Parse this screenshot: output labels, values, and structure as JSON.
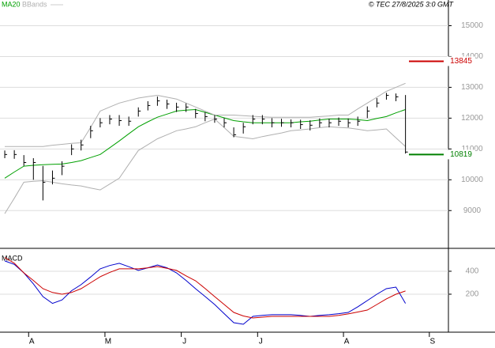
{
  "chart_data": [
    {
      "type": "ohlc",
      "legend": [
        {
          "name": "MA20",
          "color": "#00a000"
        },
        {
          "name": "BBands",
          "color": "#b0b0b0"
        }
      ],
      "credit": "© TEC 27/8/2025 3:0 GMT",
      "categories": [
        null,
        null,
        null,
        "A",
        null,
        null,
        null,
        null,
        null,
        null,
        null,
        "M",
        null,
        null,
        null,
        null,
        null,
        null,
        null,
        "J",
        null,
        null,
        null,
        null,
        null,
        null,
        null,
        "J",
        null,
        null,
        null,
        null,
        null,
        null,
        null,
        null,
        "A",
        null,
        null,
        null,
        null,
        null,
        null,
        null,
        null,
        "S",
        null
      ],
      "high": [
        10950,
        10960,
        10800,
        10700,
        10450,
        10300,
        10600,
        11150,
        11300,
        11750,
        12000,
        12100,
        12100,
        12050,
        12350,
        12550,
        12700,
        12600,
        12500,
        12480,
        12300,
        12200,
        12100,
        12000,
        11700,
        11850,
        12100,
        12100,
        12000,
        11980,
        11960,
        11950,
        11930,
        11990,
        11980,
        12020,
        11990,
        12050,
        12380,
        12650,
        12820,
        12800,
        12750,
        null,
        null,
        null,
        null
      ],
      "low": [
        10700,
        10680,
        10450,
        10000,
        9330,
        9850,
        10150,
        10800,
        10950,
        11350,
        11700,
        11800,
        11750,
        11750,
        12050,
        12250,
        12400,
        12300,
        12200,
        12200,
        12000,
        11900,
        11850,
        11700,
        11380,
        11500,
        11800,
        11800,
        11700,
        11720,
        11700,
        11650,
        11600,
        11700,
        11700,
        11750,
        11700,
        11750,
        12000,
        12350,
        12600,
        12550,
        10850,
        null,
        null,
        null,
        null
      ],
      "close": [
        10820,
        10820,
        10560,
        10560,
        9920,
        10050,
        10440,
        11000,
        11130,
        11590,
        11850,
        11970,
        11920,
        11900,
        12230,
        12410,
        12560,
        12460,
        12360,
        12360,
        12150,
        12050,
        11970,
        11850,
        11460,
        11720,
        11970,
        11970,
        11850,
        11850,
        11850,
        11790,
        11770,
        11850,
        11850,
        11900,
        11850,
        11900,
        12230,
        12490,
        12740,
        12690,
        10900,
        null,
        null,
        null,
        null
      ],
      "bar_color": "#000000",
      "series": [
        {
          "name": "MA20",
          "color": "#00a000",
          "values": [
            10050,
            10250,
            10440,
            10470,
            10490,
            10500,
            10510,
            10560,
            10620,
            10720,
            10820,
            11040,
            11260,
            11490,
            11720,
            11880,
            12030,
            12130,
            12230,
            12260,
            12280,
            12190,
            12100,
            12010,
            11920,
            11880,
            11850,
            11850,
            11850,
            11850,
            11850,
            11880,
            11900,
            11940,
            11970,
            11970,
            11970,
            11950,
            11920,
            11990,
            12050,
            12170,
            12280,
            null,
            null,
            null,
            null
          ]
        },
        {
          "name": "BBands",
          "color": "#b0b0b0",
          "values": [
            11080,
            11080,
            11080,
            11080,
            11080,
            11120,
            11150,
            11180,
            11200,
            11700,
            12230,
            12360,
            12490,
            12570,
            12650,
            12700,
            12740,
            12680,
            12620,
            12490,
            12360,
            12230,
            12100,
            12100,
            12100,
            12080,
            12060,
            12040,
            12030,
            12030,
            12030,
            12030,
            12030,
            12050,
            12070,
            12100,
            12100,
            12300,
            12490,
            12680,
            12870,
            13000,
            13130,
            null,
            null,
            null,
            null
          ],
          "lower": [
            8900,
            9400,
            9920,
            9950,
            9970,
            9920,
            9870,
            9830,
            9800,
            9730,
            9670,
            9860,
            10050,
            10500,
            10950,
            11140,
            11330,
            11460,
            11590,
            11650,
            11720,
            11850,
            11970,
            11690,
            11410,
            11370,
            11330,
            11400,
            11460,
            11520,
            11590,
            11620,
            11650,
            11690,
            11720,
            11700,
            11680,
            11640,
            11590,
            11620,
            11650,
            11360,
            11080,
            null,
            null,
            null,
            null
          ]
        }
      ],
      "levels": [
        {
          "value": 13845,
          "label": "13845",
          "color": "#cc0000"
        },
        {
          "value": 10819,
          "label": "10819",
          "color": "#008000"
        }
      ],
      "ylim": [
        7800,
        15500
      ],
      "yticks": [
        9000,
        10000,
        11000,
        12000,
        13000,
        14000,
        15000
      ],
      "grid": true
    },
    {
      "type": "line",
      "title": "MACD",
      "series": [
        {
          "color": "#0000cc",
          "values": [
            490,
            460,
            386,
            290,
            179,
            120,
            150,
            230,
            283,
            350,
            421,
            450,
            469,
            440,
            407,
            430,
            455,
            430,
            386,
            320,
            248,
            180,
            110,
            30,
            -48,
            -62,
            7,
            15,
            21,
            21,
            21,
            15,
            7,
            15,
            21,
            30,
            41,
            90,
            145,
            200,
            248,
            262,
            120,
            null,
            null,
            null,
            null
          ]
        },
        {
          "color": "#cc0000",
          "values": [
            520,
            470,
            386,
            320,
            248,
            215,
            200,
            215,
            248,
            300,
            352,
            390,
            421,
            421,
            421,
            430,
            441,
            425,
            407,
            360,
            317,
            250,
            179,
            110,
            41,
            10,
            -7,
            0,
            7,
            7,
            7,
            7,
            7,
            7,
            7,
            15,
            28,
            45,
            62,
            110,
            159,
            200,
            228,
            null,
            null,
            null,
            null
          ]
        }
      ],
      "ylim": [
        -131,
        572
      ],
      "yticks": [
        200,
        400
      ],
      "grid": true
    }
  ]
}
